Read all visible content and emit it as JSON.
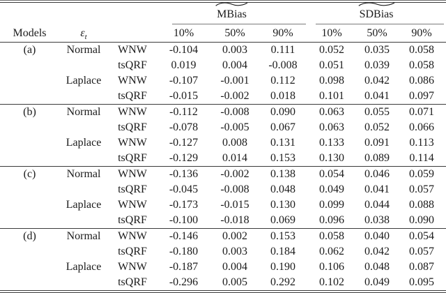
{
  "colors": {
    "text": "#1b1b1b",
    "rule": "#3a3a3a",
    "cmidrule": "#7a7a7a",
    "background": "#ffffff"
  },
  "table": {
    "header": {
      "models_label": "Models",
      "epsilon_label": "ε",
      "epsilon_subscript": "t",
      "groups": [
        {
          "label": "MBias",
          "accent": "widetilde"
        },
        {
          "label": "SDBias",
          "accent": "widetilde"
        }
      ],
      "quantiles": [
        "10%",
        "50%",
        "90%"
      ]
    },
    "blocks": [
      {
        "model": "(a)",
        "rows": [
          {
            "dist": "Normal",
            "method": "WNW",
            "values": [
              "-0.104",
              "0.003",
              "0.111",
              "0.052",
              "0.035",
              "0.058"
            ]
          },
          {
            "dist": "",
            "method": "tsQRF",
            "values": [
              "0.019",
              "0.004",
              "-0.008",
              "0.051",
              "0.039",
              "0.058"
            ]
          },
          {
            "dist": "Laplace",
            "method": "WNW",
            "values": [
              "-0.107",
              "-0.001",
              "0.112",
              "0.098",
              "0.042",
              "0.086"
            ]
          },
          {
            "dist": "",
            "method": "tsQRF",
            "values": [
              "-0.015",
              "-0.002",
              "0.018",
              "0.101",
              "0.041",
              "0.097"
            ]
          }
        ]
      },
      {
        "model": "(b)",
        "rows": [
          {
            "dist": "Normal",
            "method": "WNW",
            "values": [
              "-0.112",
              "-0.008",
              "0.090",
              "0.063",
              "0.055",
              "0.071"
            ]
          },
          {
            "dist": "",
            "method": "tsQRF",
            "values": [
              "-0.078",
              "-0.005",
              "0.067",
              "0.063",
              "0.052",
              "0.066"
            ]
          },
          {
            "dist": "Laplace",
            "method": "WNW",
            "values": [
              "-0.127",
              "0.008",
              "0.131",
              "0.133",
              "0.091",
              "0.113"
            ]
          },
          {
            "dist": "",
            "method": "tsQRF",
            "values": [
              "-0.129",
              "0.014",
              "0.153",
              "0.130",
              "0.089",
              "0.114"
            ]
          }
        ]
      },
      {
        "model": "(c)",
        "rows": [
          {
            "dist": "Normal",
            "method": "WNW",
            "values": [
              "-0.136",
              "-0.002",
              "0.138",
              "0.054",
              "0.046",
              "0.059"
            ]
          },
          {
            "dist": "",
            "method": "tsQRF",
            "values": [
              "-0.045",
              "-0.008",
              "0.048",
              "0.049",
              "0.041",
              "0.057"
            ]
          },
          {
            "dist": "Laplace",
            "method": "WNW",
            "values": [
              "-0.173",
              "-0.015",
              "0.130",
              "0.099",
              "0.044",
              "0.088"
            ]
          },
          {
            "dist": "",
            "method": "tsQRF",
            "values": [
              "-0.100",
              "-0.018",
              "0.069",
              "0.096",
              "0.038",
              "0.090"
            ]
          }
        ]
      },
      {
        "model": "(d)",
        "rows": [
          {
            "dist": "Normal",
            "method": "WNW",
            "values": [
              "-0.146",
              "0.002",
              "0.153",
              "0.058",
              "0.040",
              "0.054"
            ]
          },
          {
            "dist": "",
            "method": "tsQRF",
            "values": [
              "-0.180",
              "0.003",
              "0.184",
              "0.062",
              "0.042",
              "0.057"
            ]
          },
          {
            "dist": "Laplace",
            "method": "WNW",
            "values": [
              "-0.187",
              "0.004",
              "0.190",
              "0.106",
              "0.048",
              "0.087"
            ]
          },
          {
            "dist": "",
            "method": "tsQRF",
            "values": [
              "-0.296",
              "0.005",
              "0.292",
              "0.102",
              "0.049",
              "0.095"
            ]
          }
        ]
      }
    ]
  }
}
